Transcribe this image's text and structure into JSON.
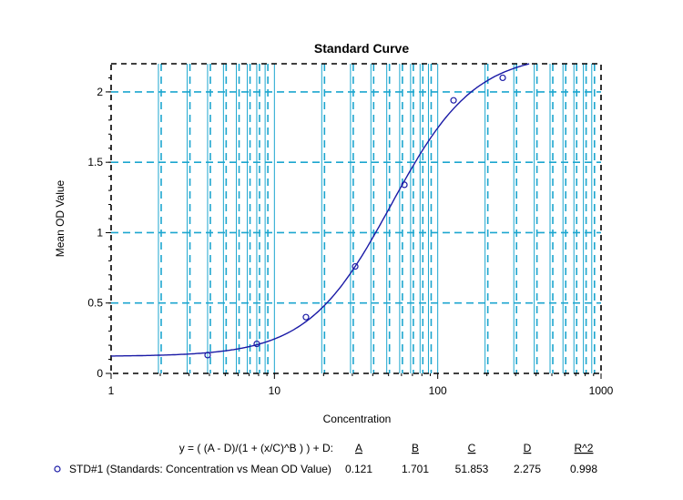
{
  "chart_data": {
    "type": "scatter",
    "title": "Standard Curve",
    "xlabel": "Concentration",
    "ylabel": "Mean OD Value",
    "x_scale": "log",
    "xlim": [
      1,
      1000
    ],
    "ylim": [
      0,
      2.2
    ],
    "grid": true,
    "x_ticks": [
      1,
      10,
      100,
      1000
    ],
    "x_tick_labels": [
      "1",
      "10",
      "100",
      "1000"
    ],
    "y_ticks": [
      0,
      0.5,
      1,
      1.5,
      2
    ],
    "y_tick_labels": [
      "0",
      "0.5",
      "1",
      "1.5",
      "2"
    ],
    "colors": {
      "curve": "#1a1aa6",
      "points": "#1a1aa6",
      "grid": "#1ca6cf",
      "frame": "#000000"
    },
    "series": [
      {
        "marker": "open-circle",
        "x": [
          3.9,
          7.8,
          15.6,
          31.25,
          62.5,
          125,
          250
        ],
        "y": [
          0.13,
          0.21,
          0.4,
          0.76,
          1.34,
          1.94,
          2.1
        ]
      }
    ],
    "fit": {
      "model": "4PL",
      "equation": "y = ( (A - D)/(1 + (x/C)^B ) ) + D:",
      "A": 0.121,
      "B": 1.701,
      "C": 51.853,
      "D": 2.275,
      "R2": 0.998
    },
    "legend": {
      "entry": "STD#1 (Standards: Concentration vs Mean OD Value)",
      "headers": [
        "A",
        "B",
        "C",
        "D",
        "R^2"
      ],
      "values": [
        "0.121",
        "1.701",
        "51.853",
        "2.275",
        "0.998"
      ]
    }
  }
}
